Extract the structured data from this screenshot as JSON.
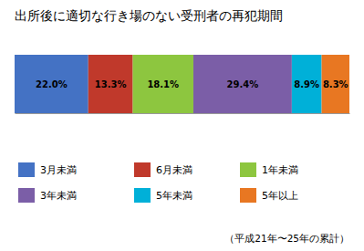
{
  "chart_data": {
    "type": "bar",
    "orientation": "horizontal",
    "stacked": true,
    "title": "出所後に適切な行き場のない受刑者の再犯期間",
    "annotations": [
      "（平成21年〜25年の累計）"
    ],
    "categories": [
      null
    ],
    "series": [
      {
        "name": "3月未満",
        "color": "#4472C4",
        "values": [
          22.0
        ],
        "value_labels": [
          "22.0%"
        ]
      },
      {
        "name": "6月未満",
        "color": "#C0392B",
        "values": [
          13.3
        ],
        "value_labels": [
          "13.3%"
        ]
      },
      {
        "name": "1年未満",
        "color": "#8DC63F",
        "values": [
          18.1
        ],
        "value_labels": [
          "18.1%"
        ]
      },
      {
        "name": "3年未満",
        "color": "#7B5EA7",
        "values": [
          29.4
        ],
        "value_labels": [
          "29.4%"
        ]
      },
      {
        "name": "5年未満",
        "color": "#00B0D8",
        "values": [
          8.9
        ],
        "value_labels": [
          "8.9%"
        ]
      },
      {
        "name": "5年以上",
        "color": "#E87722",
        "values": [
          8.3
        ],
        "value_labels": [
          "8.3%"
        ]
      }
    ],
    "xlim": [
      0,
      100
    ],
    "data_labels": true,
    "tick_labels": false,
    "grid": false,
    "legend": "bottom"
  }
}
